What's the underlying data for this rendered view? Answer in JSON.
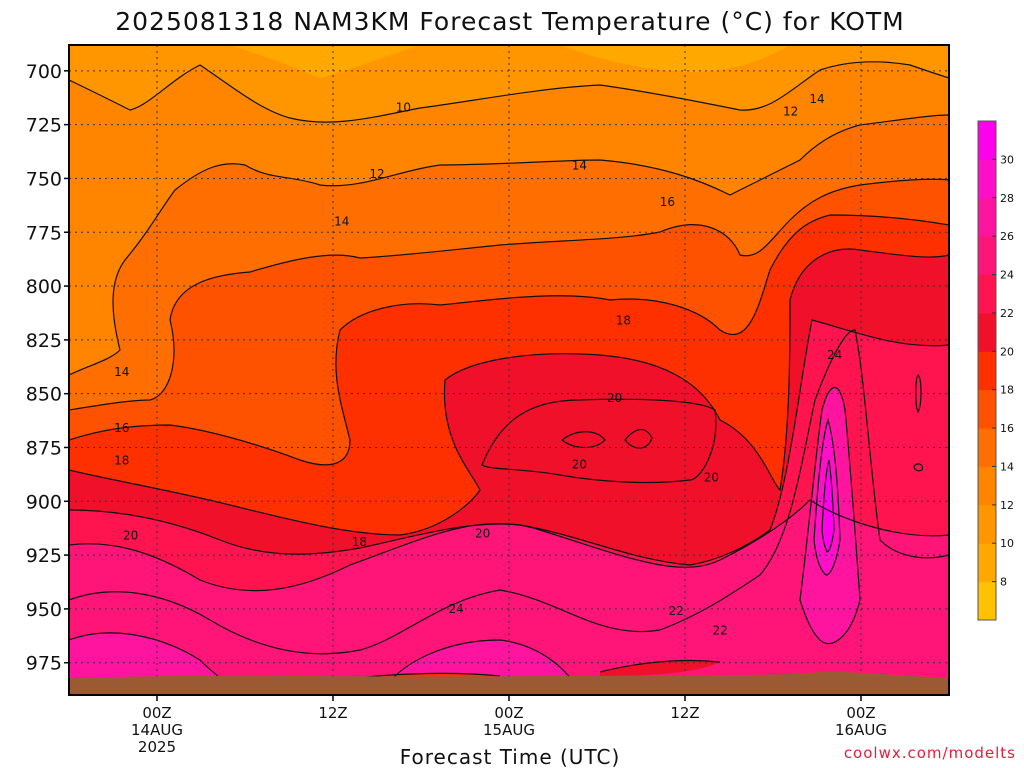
{
  "chart_data": {
    "type": "heatmap",
    "title": "2025081318 NAM3KM Forecast Temperature (°C) for KOTM",
    "xlabel": "Forecast Time (UTC)",
    "ylabel": "",
    "y_axis": {
      "ticks": [
        700,
        725,
        750,
        775,
        800,
        825,
        850,
        875,
        900,
        925,
        950,
        975
      ],
      "range": [
        688,
        990
      ],
      "inverted": true
    },
    "x_axis": {
      "range_hours": [
        -5,
        45
      ],
      "ticks": [
        {
          "hour": 0,
          "lines": [
            "00Z",
            "14AUG",
            "2025"
          ]
        },
        {
          "hour": 10,
          "lines": [
            "12Z"
          ]
        },
        {
          "hour": 20,
          "lines": [
            "00Z",
            "15AUG"
          ]
        },
        {
          "hour": 30,
          "lines": [
            "12Z"
          ]
        },
        {
          "hour": 40,
          "lines": [
            "00Z",
            "16AUG"
          ]
        }
      ]
    },
    "grid": true,
    "colorbar": {
      "placement": "right",
      "levels": [
        8,
        10,
        12,
        14,
        16,
        18,
        20,
        22,
        24,
        26,
        28,
        30
      ],
      "colors": [
        "#ffc200",
        "#ffa800",
        "#ff9600",
        "#ff8400",
        "#ff6e00",
        "#ff5200",
        "#ff3000",
        "#f0102a",
        "#ff1450",
        "#ff1478",
        "#ff14a0",
        "#ff10c8",
        "#ff00ec"
      ]
    },
    "contour_labels": [
      {
        "value": "10",
        "hour": 14,
        "p": 717
      },
      {
        "value": "12",
        "hour": 12.5,
        "p": 748
      },
      {
        "value": "12",
        "hour": 36,
        "p": 719
      },
      {
        "value": "14",
        "hour": 37.5,
        "p": 713
      },
      {
        "value": "14",
        "hour": 24,
        "p": 744
      },
      {
        "value": "14",
        "hour": 10.5,
        "p": 770
      },
      {
        "value": "14",
        "hour": -2,
        "p": 840
      },
      {
        "value": "16",
        "hour": 29,
        "p": 761
      },
      {
        "value": "16",
        "hour": -2,
        "p": 866
      },
      {
        "value": "18",
        "hour": 26.5,
        "p": 816
      },
      {
        "value": "18",
        "hour": -2,
        "p": 881
      },
      {
        "value": "18",
        "hour": 11.5,
        "p": 919
      },
      {
        "value": "20",
        "hour": 26,
        "p": 852
      },
      {
        "value": "20",
        "hour": 24,
        "p": 883
      },
      {
        "value": "20",
        "hour": 31.5,
        "p": 889
      },
      {
        "value": "20",
        "hour": 18.5,
        "p": 915
      },
      {
        "value": "20",
        "hour": -1.5,
        "p": 916
      },
      {
        "value": "22",
        "hour": 29.5,
        "p": 951
      },
      {
        "value": "22",
        "hour": 32,
        "p": 960
      },
      {
        "value": "24",
        "hour": 17,
        "p": 950
      },
      {
        "value": "24",
        "hour": 38.5,
        "p": 832
      }
    ]
  },
  "credit": "coolwx.com/modelts",
  "colors": {
    "ground": "#9c5a34",
    "credit": "#e0203c",
    "colorbar_border": "#555555"
  }
}
